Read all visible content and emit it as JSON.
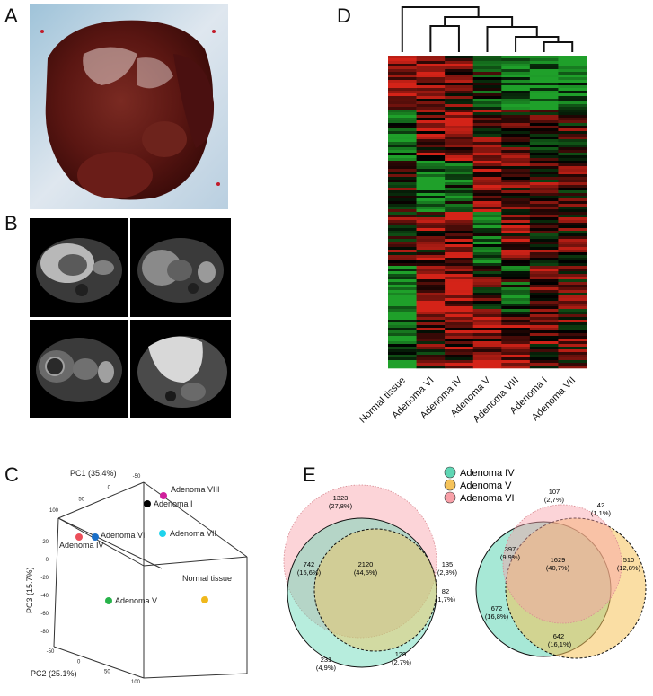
{
  "panels": {
    "a": "A",
    "b": "B",
    "c": "C",
    "d": "D",
    "e": "E"
  },
  "heatmap": {
    "column_labels": [
      "Normal tissue",
      "Adenoma VI",
      "Adenoma IV",
      "Adenoma V",
      "Adenoma VIII",
      "Adenoma I",
      "Adenoma VII"
    ],
    "colors": {
      "red": "#d42318",
      "green": "#1fa02a",
      "black": "#000000"
    }
  },
  "pca": {
    "axis_pc1": "PC1 (35.4%)",
    "axis_pc2": "PC2 (25.1%)",
    "axis_pc3": "PC3 (15.7%)",
    "pc1_ticks": [
      "100",
      "50",
      "0",
      "-50"
    ],
    "pc2_ticks": [
      "-50",
      "0",
      "50",
      "100"
    ],
    "pc3_ticks": [
      "20",
      "0",
      "-20",
      "-40",
      "-60",
      "-80"
    ],
    "points": [
      {
        "label": "Adenoma VIII",
        "color": "#d0209c"
      },
      {
        "label": "Adenoma I",
        "color": "#000000"
      },
      {
        "label": "Adenoma VI",
        "color": "#1a6fc8"
      },
      {
        "label": "Adenoma IV",
        "color": "#ec4f5a"
      },
      {
        "label": "Adenoma VII",
        "color": "#1ed3ec"
      },
      {
        "label": "Adenoma V",
        "color": "#27b34a"
      },
      {
        "label": "Normal tissue",
        "color": "#f0b81c"
      }
    ]
  },
  "venn": {
    "legend": [
      {
        "label": "Adenoma IV",
        "color": "#5fd6b4"
      },
      {
        "label": "Adenoma V",
        "color": "#f5c35a"
      },
      {
        "label": "Adenoma VI",
        "color": "#f8a0a8"
      }
    ],
    "left": [
      {
        "n": "1323",
        "pct": "(27,8%)"
      },
      {
        "n": "742",
        "pct": "(15,6%)"
      },
      {
        "n": "2120",
        "pct": "(44,5%)"
      },
      {
        "n": "135",
        "pct": "(2,8%)"
      },
      {
        "n": "82",
        "pct": "(1,7%)"
      },
      {
        "n": "231",
        "pct": "(4,9%)"
      },
      {
        "n": "129",
        "pct": "(2,7%)"
      }
    ],
    "right": [
      {
        "n": "107",
        "pct": "(2,7%)"
      },
      {
        "n": "42",
        "pct": "(1,1%)"
      },
      {
        "n": "397",
        "pct": "(9,9%)"
      },
      {
        "n": "1629",
        "pct": "(40,7%)"
      },
      {
        "n": "510",
        "pct": "(12,8%)"
      },
      {
        "n": "672",
        "pct": "(16,8%)"
      },
      {
        "n": "642",
        "pct": "(16,1%)"
      }
    ]
  }
}
